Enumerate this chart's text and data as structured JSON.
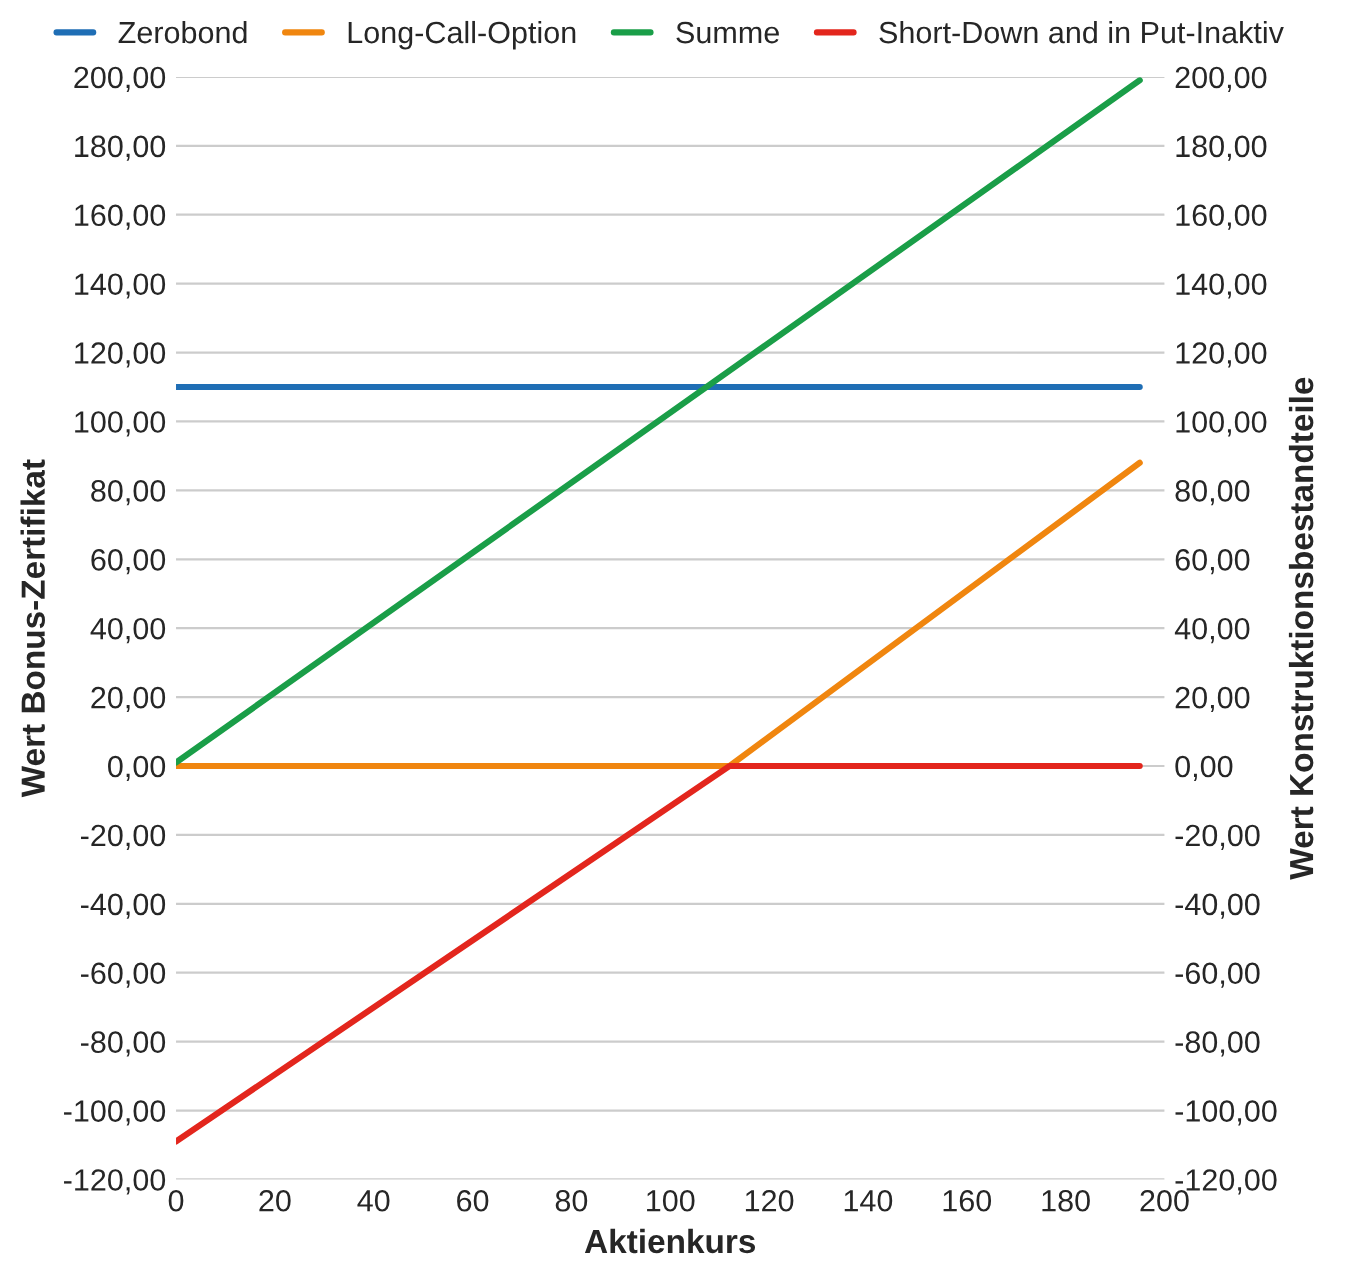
{
  "chart_data": {
    "type": "line",
    "xlabel": "Aktienkurs",
    "ylabel": "Wert Bonus-Zertifikat",
    "y2label": "Wert Konstruktionsbestandteile",
    "series": [
      {
        "name": "Zerobond",
        "color": "#1f6eb5",
        "x": [
          0,
          195
        ],
        "values": [
          110,
          110
        ]
      },
      {
        "name": "Long-Call-Option",
        "color": "#f0860f",
        "x": [
          0,
          112,
          195
        ],
        "values": [
          0,
          0,
          88
        ]
      },
      {
        "name": "Summe",
        "color": "#1a9e48",
        "x": [
          0,
          195
        ],
        "values": [
          1,
          199
        ]
      },
      {
        "name": "Short-Down and in Put-Inaktiv",
        "color": "#e3261d",
        "x": [
          0,
          112,
          195
        ],
        "values": [
          -109,
          0,
          0
        ]
      }
    ],
    "xlim": [
      0,
      200
    ],
    "xticks": [
      0,
      20,
      40,
      60,
      80,
      100,
      120,
      140,
      160,
      180,
      200
    ],
    "ylim": [
      -120,
      200
    ],
    "yticks": [
      {
        "value": -120,
        "label": "-120,00"
      },
      {
        "value": -100,
        "label": "-100,00"
      },
      {
        "value": -80,
        "label": "-80,00"
      },
      {
        "value": -60,
        "label": "-60,00"
      },
      {
        "value": -40,
        "label": "-40,00"
      },
      {
        "value": -20,
        "label": "-20,00"
      },
      {
        "value": 0,
        "label": "0,00"
      },
      {
        "value": 20,
        "label": "20,00"
      },
      {
        "value": 40,
        "label": "40,00"
      },
      {
        "value": 60,
        "label": "60,00"
      },
      {
        "value": 80,
        "label": "80,00"
      },
      {
        "value": 100,
        "label": "100,00"
      },
      {
        "value": 120,
        "label": "120,00"
      },
      {
        "value": 140,
        "label": "140,00"
      },
      {
        "value": 160,
        "label": "160,00"
      },
      {
        "value": 180,
        "label": "180,00"
      },
      {
        "value": 200,
        "label": "200,00"
      }
    ],
    "y2lim": [
      -120,
      200
    ],
    "y2ticks": [
      {
        "value": -120,
        "label": "-120,00"
      },
      {
        "value": -100,
        "label": "-100,00"
      },
      {
        "value": -80,
        "label": "-80,00"
      },
      {
        "value": -60,
        "label": "-60,00"
      },
      {
        "value": -40,
        "label": "-40,00"
      },
      {
        "value": -20,
        "label": "-20,00"
      },
      {
        "value": 0,
        "label": "0,00"
      },
      {
        "value": 20,
        "label": "20,00"
      },
      {
        "value": 40,
        "label": "40,00"
      },
      {
        "value": 60,
        "label": "60,00"
      },
      {
        "value": 80,
        "label": "80,00"
      },
      {
        "value": 100,
        "label": "100,00"
      },
      {
        "value": 120,
        "label": "120,00"
      },
      {
        "value": 140,
        "label": "140,00"
      },
      {
        "value": 160,
        "label": "160,00"
      },
      {
        "value": 180,
        "label": "180,00"
      },
      {
        "value": 200,
        "label": "200,00"
      }
    ],
    "grid": "y",
    "legend": "top",
    "marker": "none",
    "line_style": "solid"
  }
}
